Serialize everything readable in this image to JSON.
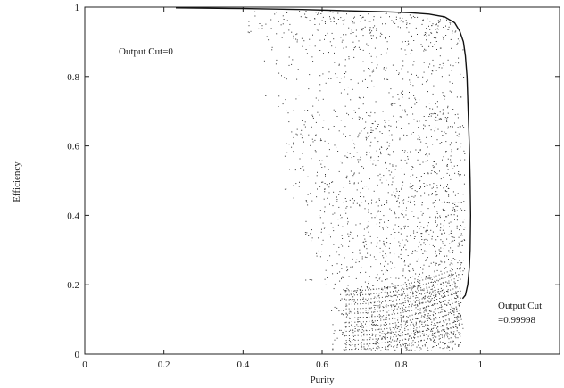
{
  "chart_data": {
    "type": "scatter",
    "title": "",
    "xlabel": "Purity",
    "ylabel": "Efficiency",
    "xlim": [
      0,
      1.2
    ],
    "ylim": [
      0,
      1
    ],
    "x_ticks": [
      "0",
      "0.2",
      "0.4",
      "0.6",
      "0.8",
      "1"
    ],
    "y_ticks": [
      "0",
      "0.2",
      "0.4",
      "0.6",
      "0.8",
      "1"
    ],
    "grid": false,
    "annotations": {
      "cut0": "Output Cut=0",
      "cut_high_line1": "Output Cut",
      "cut_high_line2": "=0.99998"
    },
    "series": [
      {
        "type": "line",
        "points": [
          [
            0.23,
            0.998
          ],
          [
            0.4,
            0.996
          ],
          [
            0.55,
            0.993
          ],
          [
            0.65,
            0.99
          ],
          [
            0.75,
            0.987
          ],
          [
            0.82,
            0.984
          ],
          [
            0.87,
            0.98
          ],
          [
            0.91,
            0.972
          ],
          [
            0.935,
            0.955
          ],
          [
            0.948,
            0.93
          ],
          [
            0.957,
            0.9
          ],
          [
            0.962,
            0.86
          ],
          [
            0.966,
            0.8
          ],
          [
            0.969,
            0.7
          ],
          [
            0.972,
            0.6
          ],
          [
            0.974,
            0.5
          ],
          [
            0.975,
            0.4
          ],
          [
            0.974,
            0.3
          ],
          [
            0.972,
            0.25
          ],
          [
            0.968,
            0.2
          ],
          [
            0.962,
            0.17
          ],
          [
            0.955,
            0.16
          ]
        ]
      },
      {
        "type": "scatter",
        "description_points": "dense point cloud bounded by purity ~0.40-0.97, efficiency ~0-0.99",
        "regions": [
          {
            "x": [
              0.4,
              0.95
            ],
            "y": [
              0.9,
              0.99
            ],
            "n": 260
          },
          {
            "x": [
              0.45,
              0.96
            ],
            "y": [
              0.7,
              0.9
            ],
            "n": 260
          },
          {
            "x": [
              0.5,
              0.96
            ],
            "y": [
              0.45,
              0.7
            ],
            "n": 520
          },
          {
            "x": [
              0.55,
              0.96
            ],
            "y": [
              0.2,
              0.45
            ],
            "n": 620
          },
          {
            "x": [
              0.62,
              0.95
            ],
            "y": [
              0.01,
              0.2
            ],
            "n": 760
          }
        ]
      }
    ]
  }
}
